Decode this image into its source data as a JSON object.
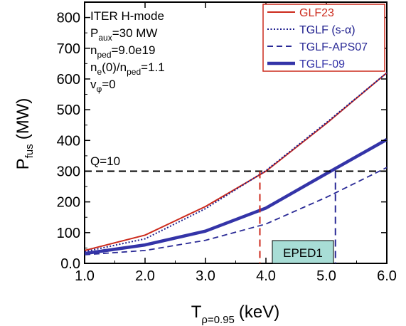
{
  "chart_data": {
    "type": "line",
    "xlabel": {
      "main": "T",
      "sub": "ρ=0.95",
      "unit": "(keV)"
    },
    "ylabel": {
      "main": "P",
      "sub": "fus",
      "unit": "(MW)"
    },
    "xlim": [
      1.0,
      6.0
    ],
    "ylim": [
      0,
      850
    ],
    "xticks": [
      "1.0",
      "2.0",
      "3.0",
      "4.0",
      "5.0",
      "6.0"
    ],
    "xtick_values": [
      1.0,
      2.0,
      3.0,
      4.0,
      5.0,
      6.0
    ],
    "yticks": [
      "0.0",
      "100",
      "200",
      "300",
      "400",
      "500",
      "600",
      "700",
      "800"
    ],
    "ytick_values": [
      0,
      100,
      200,
      300,
      400,
      500,
      600,
      700,
      800
    ],
    "x": [
      1.0,
      2.0,
      3.0,
      4.0,
      5.0,
      6.0
    ],
    "series": [
      {
        "name": "GLF23",
        "values": [
          42,
          92,
          185,
          300,
          455,
          620
        ],
        "color": "#cc2a1c",
        "style": "solid-thin"
      },
      {
        "name": "TGLF (s-α)",
        "values": [
          38,
          80,
          178,
          302,
          458,
          620
        ],
        "color": "#1c1c8c",
        "style": "dotted"
      },
      {
        "name": "TGLF-APS07",
        "values": [
          28,
          42,
          75,
          128,
          215,
          312
        ],
        "color": "#2a2a96",
        "style": "dashed"
      },
      {
        "name": "TGLF-09",
        "values": [
          32,
          60,
          105,
          180,
          292,
          403
        ],
        "color": "#3434a8",
        "style": "solid-thick"
      }
    ],
    "info_box": {
      "line1": "ITER H-mode",
      "line2_main": "P",
      "line2_sub": "aux",
      "line2_rest": "=30 MW",
      "line3_main": "n",
      "line3_sub": "ped",
      "line3_rest": "=9.0e19",
      "line4_main": "n",
      "line4_sub": "e",
      "line4_mid": "(0)/n",
      "line4_sub2": "ped",
      "line4_rest": "=1.1",
      "line5_main": "v",
      "line5_sub": "φ",
      "line5_rest": "=0"
    },
    "reference_line": {
      "label": "Q=10",
      "y": 300
    },
    "markers": [
      {
        "x": 3.9,
        "color": "#cc2a1c"
      },
      {
        "x": 5.15,
        "color": "#2a2a96"
      }
    ],
    "badge": {
      "label": "EPED1",
      "fill": "#a8ddd6"
    },
    "legend_placement": "top-right",
    "grid": false
  }
}
